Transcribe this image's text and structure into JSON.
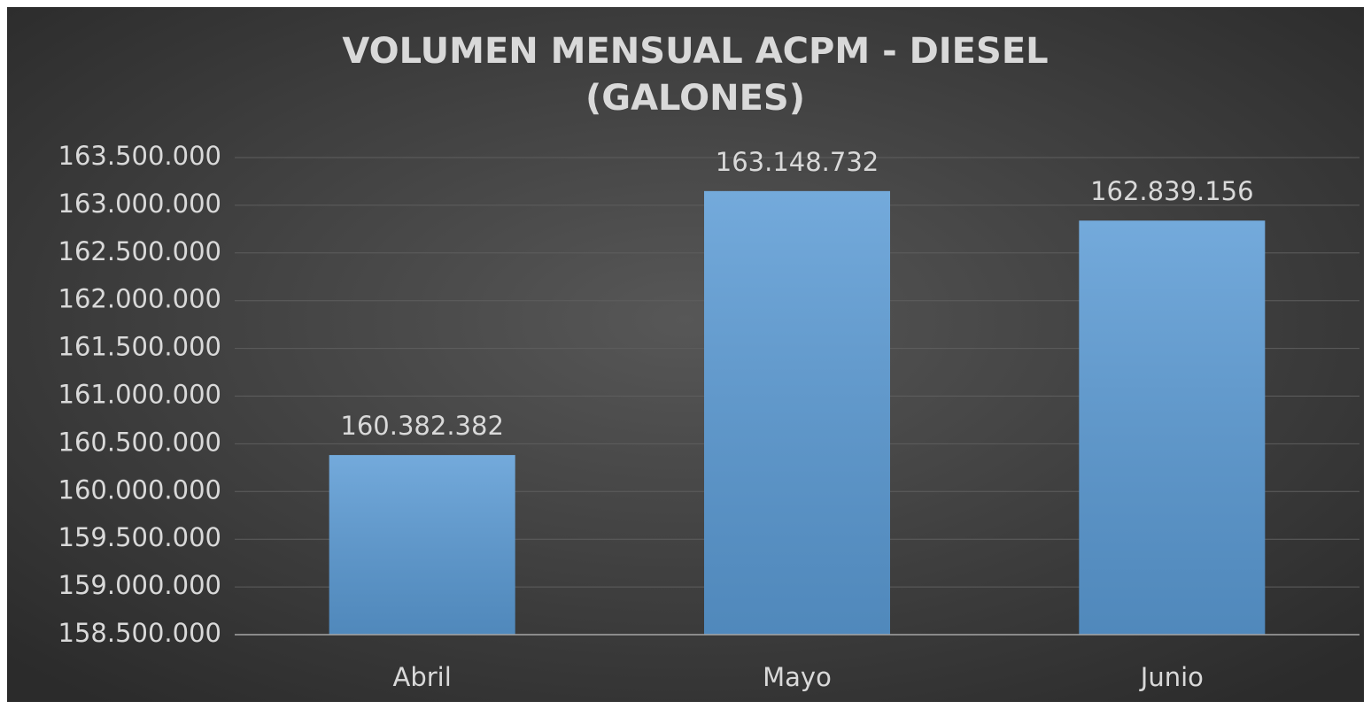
{
  "chart_data": {
    "type": "bar",
    "title": [
      "VOLUMEN MENSUAL ACPM - DIESEL",
      "(GALONES)"
    ],
    "categories": [
      "Abril",
      "Mayo",
      "Junio"
    ],
    "values": [
      160382382,
      163148732,
      162839156
    ],
    "value_labels": [
      "160.382.382",
      "163.148.732",
      "162.839.156"
    ],
    "color": "#5b9bd5",
    "ylim": [
      158500000,
      163500000
    ],
    "yticks": [
      {
        "value": 158500000,
        "label": "158.500.000"
      },
      {
        "value": 159000000,
        "label": "159.000.000"
      },
      {
        "value": 159500000,
        "label": "159.500.000"
      },
      {
        "value": 160000000,
        "label": "160.000.000"
      },
      {
        "value": 160500000,
        "label": "160.500.000"
      },
      {
        "value": 161000000,
        "label": "161.000.000"
      },
      {
        "value": 161500000,
        "label": "161.500.000"
      },
      {
        "value": 162000000,
        "label": "162.000.000"
      },
      {
        "value": 162500000,
        "label": "162.500.000"
      },
      {
        "value": 163000000,
        "label": "163.000.000"
      },
      {
        "value": 163500000,
        "label": "163.500.000"
      }
    ],
    "grid": true
  }
}
